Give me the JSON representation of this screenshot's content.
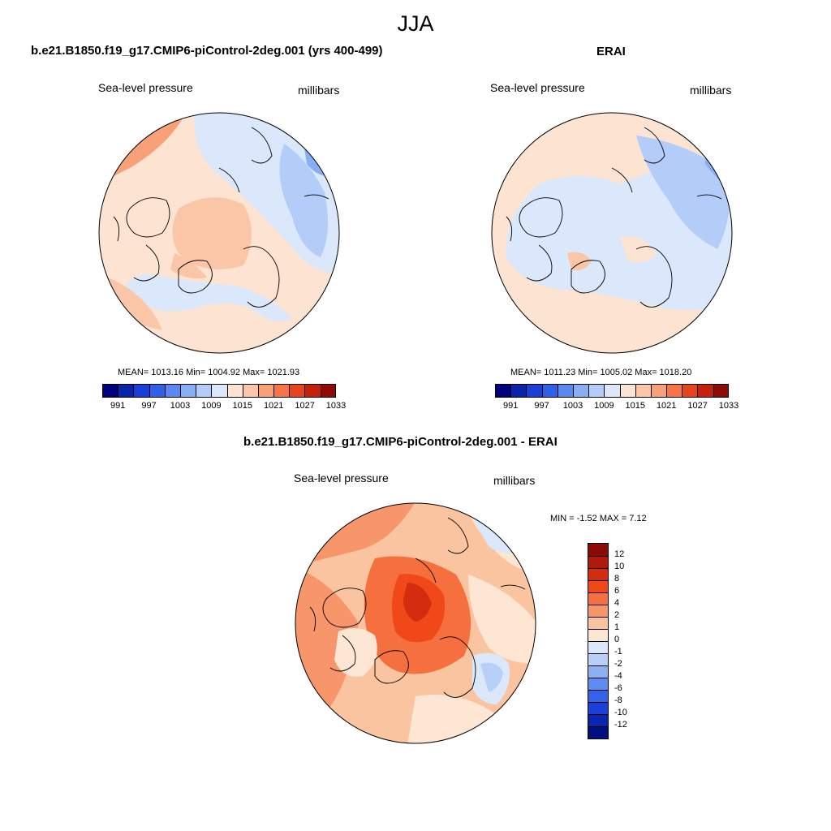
{
  "title": "JJA",
  "panels": [
    {
      "title": "b.e21.B1850.f19_g17.CMIP6-piControl-2deg.001 (yrs 400-499)",
      "field": "Sea-level pressure",
      "units": "millibars",
      "stats": "MEAN= 1013.16  Min= 1004.92  Max= 1021.93"
    },
    {
      "title": "ERAI",
      "field": "Sea-level pressure",
      "units": "millibars",
      "stats": "MEAN= 1011.23  Min= 1005.02  Max= 1018.20"
    },
    {
      "title": "b.e21.B1850.f19_g17.CMIP6-piControl-2deg.001 - ERAI",
      "field": "Sea-level pressure",
      "units": "millibars",
      "stats": "MIN =  -1.52 MAX =   7.12"
    }
  ],
  "colorbar_abs": {
    "labels": [
      "991",
      "997",
      "1003",
      "1009",
      "1015",
      "1021",
      "1027",
      "1033"
    ],
    "colors": [
      "#00007f",
      "#0a23a8",
      "#1a3fd6",
      "#3060e8",
      "#5a88f0",
      "#88aef4",
      "#b4cdf8",
      "#dbe8fb",
      "#fde4d2",
      "#fbc6a8",
      "#f8a078",
      "#f57448",
      "#e8441c",
      "#c4200c",
      "#8f0a05"
    ]
  },
  "colorbar_diff": {
    "labels": [
      "12",
      "10",
      "8",
      "6",
      "4",
      "2",
      "1",
      "0",
      "-1",
      "-2",
      "-4",
      "-6",
      "-8",
      "-10",
      "-12"
    ],
    "colors": [
      "#8b0a05",
      "#b01a0a",
      "#d42c0e",
      "#f04818",
      "#f5703e",
      "#f7966a",
      "#fbc4a0",
      "#fde6d4",
      "#dbe8fb",
      "#b8d0f8",
      "#8cb0f4",
      "#5e8cf0",
      "#3462e8",
      "#1a40d8",
      "#0a26b0",
      "#00107f"
    ]
  }
}
